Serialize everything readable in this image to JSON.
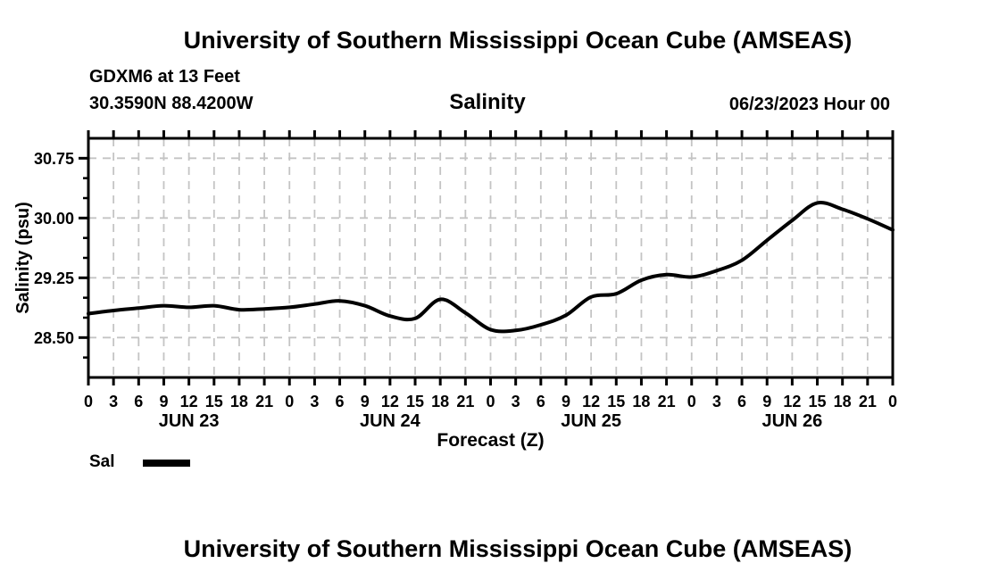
{
  "page": {
    "top_title": "University of Southern Mississippi Ocean Cube (AMSEAS)",
    "bottom_title": "University of Southern Mississippi Ocean Cube (AMSEAS)"
  },
  "header": {
    "station_line1": "GDXM6 at 13 Feet",
    "station_line2": "30.3590N  88.4200W",
    "plot_title": "Salinity",
    "run_time": "06/23/2023 Hour 00"
  },
  "legend": {
    "label": "Sal",
    "swatch_color": "#000000"
  },
  "chart_data": {
    "type": "line",
    "title": "Salinity",
    "xlabel": "Forecast (Z)",
    "ylabel": "Salinity (psu)",
    "xlim_hours": [
      0,
      96
    ],
    "ylim": [
      28.0,
      31.0
    ],
    "x_tick_interval_hours": 3,
    "x_tick_labels": [
      "0",
      "3",
      "6",
      "9",
      "12",
      "15",
      "18",
      "21",
      "0",
      "3",
      "6",
      "9",
      "12",
      "15",
      "18",
      "21",
      "0",
      "3",
      "6",
      "9",
      "12",
      "15",
      "18",
      "21",
      "0",
      "3",
      "6",
      "9",
      "12",
      "15",
      "18",
      "21",
      "0"
    ],
    "day_labels": [
      "JUN 23",
      "JUN 24",
      "JUN 25",
      "JUN 26"
    ],
    "y_ticks": [
      28.5,
      29.25,
      30.0,
      30.75
    ],
    "y_tick_labels": [
      "28.50",
      "29.25",
      "30.00",
      "30.75"
    ],
    "y_minor_step": 0.25,
    "grid": "dashed",
    "grid_color": "#c4c4c4",
    "line_color": "#000000",
    "x_hours": [
      0,
      3,
      6,
      9,
      12,
      15,
      18,
      21,
      24,
      27,
      30,
      33,
      36,
      39,
      42,
      45,
      48,
      51,
      54,
      57,
      60,
      63,
      66,
      69,
      72,
      75,
      78,
      81,
      84,
      87,
      90,
      93,
      96
    ],
    "series": [
      {
        "name": "Sal",
        "values": [
          28.8,
          28.84,
          28.87,
          28.9,
          28.88,
          28.9,
          28.85,
          28.86,
          28.88,
          28.92,
          28.96,
          28.9,
          28.77,
          28.74,
          28.98,
          28.81,
          28.6,
          28.59,
          28.66,
          28.78,
          29.01,
          29.05,
          29.22,
          29.29,
          29.26,
          29.34,
          29.47,
          29.72,
          29.97,
          30.19,
          30.11,
          29.99,
          29.85
        ]
      }
    ]
  }
}
